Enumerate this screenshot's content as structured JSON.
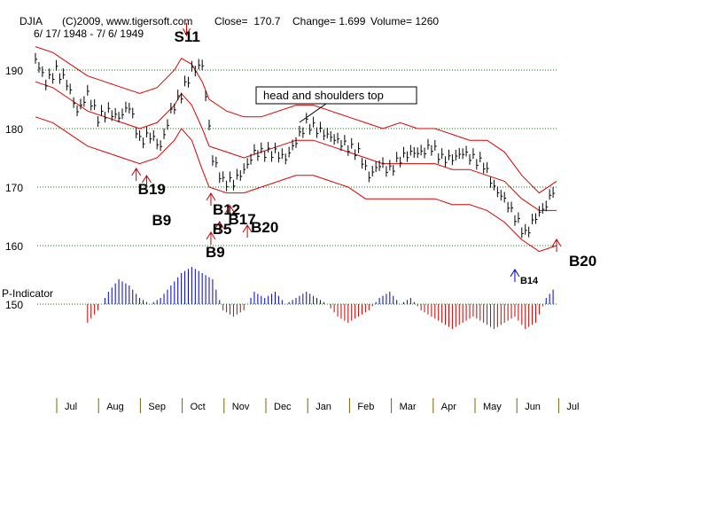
{
  "header": {
    "ticker": "DJIA",
    "copyright": "(C)2009, www.tigersoft.com",
    "close": "Close=  170.7",
    "change": "Change= 1.699",
    "volume": "Volume= 1260",
    "date_range": "6/ 17/ 1948 - 7/ 6/ 1949"
  },
  "annotation_box": "head and shoulders top",
  "indicator_label": "P-Indicator",
  "chart_data": {
    "type": "line",
    "title": "DJIA",
    "x_months": [
      "Jul",
      "Aug",
      "Sep",
      "Oct",
      "Nov",
      "Dec",
      "Jan",
      "Feb",
      "Mar",
      "Apr",
      "May",
      "Jun",
      "Jul"
    ],
    "y_ticks": [
      190,
      180,
      170,
      160,
      150
    ],
    "ylim": [
      143,
      197
    ],
    "grid": "dotted green at y ticks",
    "series": [
      {
        "name": "DJIA",
        "x": [
          0,
          6,
          12,
          18,
          24,
          30,
          36,
          42,
          48,
          54,
          60,
          66,
          72,
          78,
          84,
          90,
          96,
          102,
          108,
          114,
          120,
          126,
          132,
          138,
          144,
          150,
          156,
          162,
          168,
          174,
          180,
          186,
          192,
          198,
          204,
          210,
          216,
          222,
          228,
          234,
          240,
          246,
          252,
          258,
          264,
          270,
          276,
          282,
          288,
          294,
          300
        ],
        "values": [
          192,
          188,
          190,
          188,
          183,
          186,
          182,
          183,
          182,
          184,
          178,
          179,
          177,
          183,
          186,
          190,
          191,
          175,
          171,
          171,
          173,
          176,
          176,
          176,
          175,
          178,
          181,
          180,
          179,
          178,
          177,
          176,
          172,
          174,
          173,
          175,
          176,
          176,
          177,
          175,
          175,
          176,
          175,
          174,
          170,
          168,
          165,
          162,
          165,
          167,
          171
        ]
      },
      {
        "name": "upper band",
        "x": [
          0,
          10,
          20,
          30,
          40,
          50,
          60,
          70,
          80,
          84,
          90,
          96,
          100,
          110,
          120,
          130,
          140,
          150,
          160,
          170,
          180,
          190,
          200,
          210,
          220,
          230,
          240,
          250,
          260,
          270,
          280,
          290,
          300
        ],
        "values": [
          194,
          193,
          191,
          189,
          188,
          187,
          186,
          187,
          190,
          192,
          191,
          188,
          185,
          183,
          182,
          182,
          183,
          184,
          184,
          183,
          182,
          181,
          180,
          181,
          180,
          180,
          179,
          178,
          178,
          176,
          172,
          169,
          171
        ]
      },
      {
        "name": "middle band",
        "x": [
          0,
          10,
          20,
          30,
          40,
          50,
          60,
          70,
          80,
          84,
          90,
          96,
          100,
          110,
          120,
          130,
          140,
          150,
          160,
          170,
          180,
          190,
          200,
          210,
          220,
          230,
          240,
          250,
          260,
          270,
          280,
          290,
          300
        ],
        "values": [
          188,
          187,
          185,
          183,
          182,
          181,
          180,
          181,
          184,
          186,
          184,
          180,
          177,
          176,
          175,
          176,
          177,
          178,
          178,
          177,
          176,
          175,
          174,
          174,
          174,
          174,
          173,
          173,
          172,
          171,
          168,
          166,
          166
        ]
      },
      {
        "name": "lower band",
        "x": [
          0,
          10,
          20,
          30,
          40,
          50,
          60,
          70,
          80,
          84,
          90,
          96,
          100,
          110,
          120,
          130,
          140,
          150,
          160,
          170,
          180,
          190,
          200,
          210,
          220,
          230,
          240,
          250,
          260,
          270,
          280,
          290,
          300
        ],
        "values": [
          182,
          181,
          179,
          177,
          176,
          175,
          174,
          175,
          178,
          180,
          178,
          173,
          170,
          169,
          169,
          170,
          171,
          172,
          172,
          171,
          170,
          168,
          168,
          168,
          168,
          168,
          167,
          167,
          166,
          164,
          161,
          159,
          160
        ]
      }
    ],
    "indicator": {
      "name": "P-Indicator",
      "baseline": 150,
      "x": [
        0,
        6,
        12,
        18,
        24,
        30,
        36,
        42,
        48,
        54,
        60,
        66,
        72,
        78,
        84,
        90,
        96,
        102,
        108,
        114,
        120,
        126,
        132,
        138,
        144,
        150,
        156,
        162,
        168,
        174,
        180,
        186,
        192,
        198,
        204,
        210,
        216,
        222,
        228,
        234,
        240,
        246,
        252,
        258,
        264,
        270,
        276,
        282,
        288,
        294,
        300
      ],
      "values": [
        -1,
        -3,
        -5,
        -3,
        -2,
        -3,
        -1,
        2,
        4,
        3,
        1,
        0,
        1,
        3,
        5,
        6,
        5,
        4,
        -1,
        -2,
        -1,
        2,
        1,
        2,
        0,
        1,
        2,
        1,
        0,
        -2,
        -3,
        -2,
        -1,
        1,
        2,
        0,
        1,
        -1,
        -2,
        -3,
        -4,
        -3,
        -2,
        -3,
        -4,
        -3,
        -2,
        -4,
        -3,
        1,
        3
      ]
    },
    "signals": [
      {
        "label": "S11",
        "x": 87,
        "dir": "sell"
      },
      {
        "label": "B19",
        "x": 58,
        "dir": "buy"
      },
      {
        "label": "B9",
        "x": 64,
        "dir": "buy"
      },
      {
        "label": "B12",
        "x": 101,
        "dir": "buy"
      },
      {
        "label": "B17",
        "x": 112,
        "dir": "buy"
      },
      {
        "label": "B5",
        "x": 106,
        "dir": "buy"
      },
      {
        "label": "B20",
        "x": 122,
        "dir": "buy"
      },
      {
        "label": "B9",
        "x": 101,
        "dir": "buy"
      },
      {
        "label": "B14",
        "x": 276,
        "dir": "buy"
      },
      {
        "label": "B20",
        "x": 300,
        "dir": "buy"
      }
    ]
  }
}
